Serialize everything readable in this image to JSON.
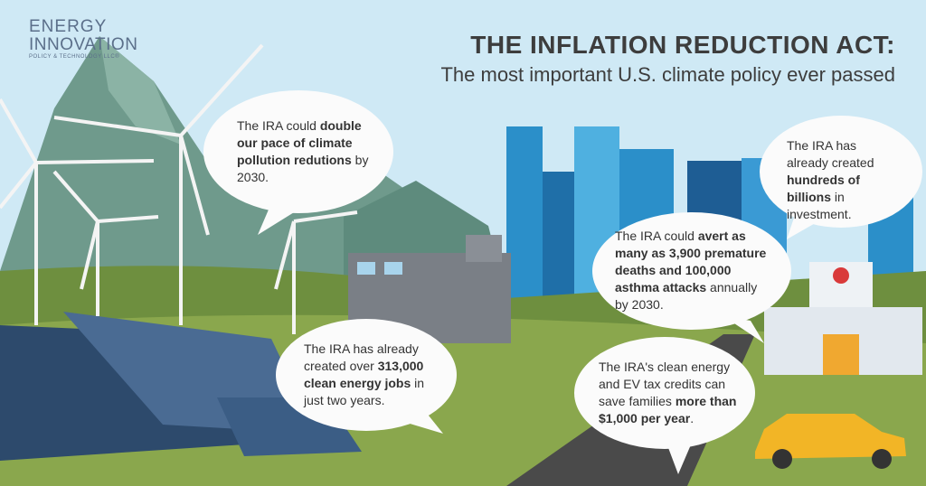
{
  "logo": {
    "line1": "ENERGY",
    "line2": "INNOVATION",
    "line3": "POLICY & TECHNOLOGY LLC®"
  },
  "header": {
    "title": "THE INFLATION REDUCTION ACT:",
    "subtitle": "The most important U.S. climate policy ever passed"
  },
  "bubbles": [
    {
      "parts": [
        "The IRA could ",
        "double our pace of climate pollution redutions",
        " by 2030."
      ]
    },
    {
      "parts": [
        "The IRA has already created ",
        "hundreds of billions",
        " in investment."
      ]
    },
    {
      "parts": [
        "The IRA could ",
        "avert as many as 3,900 premature deaths and 100,000 asthma attacks",
        " annually by 2030."
      ]
    },
    {
      "parts": [
        "The IRA has already created over ",
        "313,000 clean energy jobs",
        " in just two years."
      ]
    },
    {
      "parts": [
        "The IRA's clean energy and EV tax credits can save families ",
        "more than $1,000 per year",
        "."
      ]
    }
  ]
}
